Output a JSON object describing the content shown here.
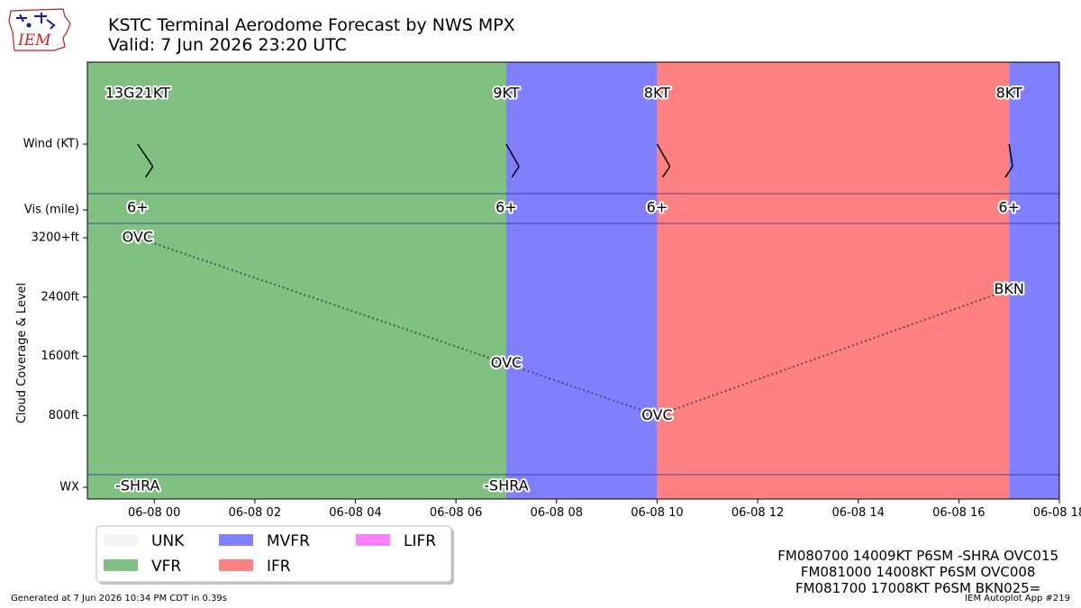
{
  "header": {
    "title": "KSTC Terminal Aerodome Forecast by NWS MPX",
    "subtitle": "Valid: 7 Jun 2026 23:20 UTC",
    "logo_text": "IEM"
  },
  "footer": {
    "generated": "Generated at 7 Jun 2026 10:34 PM CDT in 0.39s",
    "app": "IEM Autoplot App #219"
  },
  "taf_text": [
    "FM080700 14009KT P6SM -SHRA OVC015",
    "FM081000 14008KT P6SM OVC008",
    "FM081700 17008KT P6SM BKN025="
  ],
  "colors": {
    "VFR": "#80c080",
    "MVFR": "#8080ff",
    "IFR": "#ff8080",
    "LIFR": "#ff80ff",
    "UNK": "#f5f5f5"
  },
  "chart_data": {
    "type": "timeline",
    "x_range_hours": [
      -1.33,
      18
    ],
    "x_ticks": [
      {
        "h": 0,
        "label": "06-08 00"
      },
      {
        "h": 2,
        "label": "06-08 02"
      },
      {
        "h": 4,
        "label": "06-08 04"
      },
      {
        "h": 6,
        "label": "06-08 06"
      },
      {
        "h": 8,
        "label": "06-08 08"
      },
      {
        "h": 10,
        "label": "06-08 10"
      },
      {
        "h": 12,
        "label": "06-08 12"
      },
      {
        "h": 14,
        "label": "06-08 14"
      },
      {
        "h": 16,
        "label": "06-08 16"
      },
      {
        "h": 18,
        "label": "06-08 18"
      }
    ],
    "y_label": "Cloud Coverage & Level",
    "row_labels": {
      "wind": "Wind (KT)",
      "vis": "Vis (mile)",
      "wx": "WX"
    },
    "cloud_ticks": [
      {
        "ft": 800,
        "label": "800ft"
      },
      {
        "ft": 1600,
        "label": "1600ft"
      },
      {
        "ft": 2400,
        "label": "2400ft"
      },
      {
        "ft": 3200,
        "label": "3200+ft"
      }
    ],
    "category_spans": [
      {
        "start": -1.33,
        "end": 7,
        "category": "VFR"
      },
      {
        "start": 7,
        "end": 10,
        "category": "MVFR"
      },
      {
        "start": 10,
        "end": 17,
        "category": "IFR"
      },
      {
        "start": 17,
        "end": 18,
        "category": "MVFR"
      }
    ],
    "forecasts": [
      {
        "h": -0.33,
        "wind_label": "13G21KT",
        "wind_dir": 130,
        "wind_speed": 13,
        "vis": "6+",
        "cloud": "OVC",
        "cloud_ft": 3200,
        "wx": "-SHRA"
      },
      {
        "h": 7,
        "wind_label": "9KT",
        "wind_dir": 140,
        "wind_speed": 9,
        "vis": "6+",
        "cloud": "OVC",
        "cloud_ft": 1500,
        "wx": "-SHRA"
      },
      {
        "h": 10,
        "wind_label": "8KT",
        "wind_dir": 140,
        "wind_speed": 8,
        "vis": "6+",
        "cloud": "OVC",
        "cloud_ft": 800,
        "wx": ""
      },
      {
        "h": 17,
        "wind_label": "8KT",
        "wind_dir": 170,
        "wind_speed": 8,
        "vis": "6+",
        "cloud": "BKN",
        "cloud_ft": 2500,
        "wx": ""
      }
    ],
    "legend": [
      "UNK",
      "VFR",
      "MVFR",
      "IFR",
      "LIFR"
    ]
  }
}
